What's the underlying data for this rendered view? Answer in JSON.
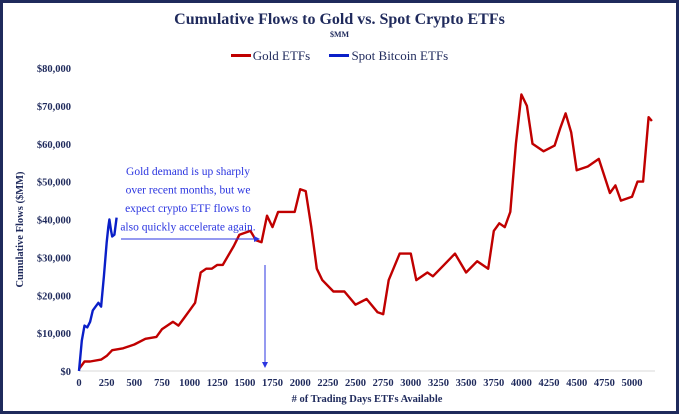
{
  "chart_data": {
    "type": "line",
    "title": "Cumulative Flows to Gold vs. Spot Crypto ETFs",
    "subtitle": "$MM",
    "xlabel": "# of Trading Days ETFs Available",
    "ylabel": "Cumulative Flows ($MM)",
    "xlim": [
      0,
      5250
    ],
    "ylim": [
      0,
      80000
    ],
    "x_ticks": [
      "0",
      "250",
      "500",
      "750",
      "1000",
      "1250",
      "1500",
      "1750",
      "2000",
      "2250",
      "2500",
      "2750",
      "3000",
      "3250",
      "3500",
      "3750",
      "4000",
      "4250",
      "4500",
      "4750",
      "5000"
    ],
    "y_ticks": [
      "$0",
      "$10,000",
      "$20,000",
      "$30,000",
      "$40,000",
      "$50,000",
      "$60,000",
      "$70,000",
      "$80,000"
    ],
    "grid": false,
    "legend_placement": "top",
    "annotation": [
      "Gold demand is up sharply",
      "over recent months, but we",
      "expect crypto ETF flows to",
      "also quickly accelerate again."
    ],
    "series": [
      {
        "name": "Gold ETFs",
        "color": "#c00000",
        "x": [
          0,
          50,
          100,
          200,
          250,
          300,
          400,
          500,
          600,
          700,
          750,
          850,
          900,
          950,
          1000,
          1050,
          1100,
          1150,
          1200,
          1250,
          1300,
          1400,
          1450,
          1550,
          1600,
          1650,
          1700,
          1750,
          1800,
          1900,
          1950,
          2000,
          2050,
          2100,
          2150,
          2200,
          2300,
          2400,
          2500,
          2600,
          2700,
          2750,
          2800,
          2900,
          3000,
          3050,
          3150,
          3200,
          3300,
          3400,
          3500,
          3600,
          3700,
          3750,
          3800,
          3850,
          3900,
          3950,
          4000,
          4050,
          4100,
          4200,
          4300,
          4350,
          4400,
          4450,
          4500,
          4600,
          4700,
          4800,
          4850,
          4900,
          5000,
          5050,
          5100,
          5150,
          5180
        ],
        "y": [
          500,
          2500,
          2500,
          3000,
          4000,
          5500,
          6000,
          7000,
          8500,
          9000,
          11000,
          13000,
          12000,
          14000,
          16000,
          18000,
          26000,
          27000,
          27000,
          28000,
          28000,
          33000,
          36000,
          37000,
          34500,
          34000,
          41000,
          38000,
          42000,
          42000,
          42000,
          48000,
          47500,
          38000,
          27000,
          24000,
          21000,
          21000,
          17500,
          19000,
          15500,
          15000,
          24000,
          31000,
          31000,
          24000,
          26000,
          25000,
          28000,
          31000,
          26000,
          29000,
          27000,
          37000,
          39000,
          38000,
          42000,
          60000,
          73000,
          70000,
          60000,
          58000,
          59500,
          64000,
          68000,
          63000,
          53000,
          54000,
          56000,
          47000,
          49000,
          45000,
          46000,
          50000,
          50000,
          67000,
          66000
        ]
      },
      {
        "name": "Spot Bitcoin ETFs",
        "color": "#0a1fc8",
        "x": [
          0,
          25,
          50,
          75,
          100,
          125,
          150,
          175,
          200,
          225,
          250,
          265,
          275,
          290,
          300,
          320,
          340
        ],
        "y": [
          0,
          8000,
          12000,
          11500,
          13000,
          16000,
          17000,
          18000,
          17000,
          25000,
          34000,
          38000,
          40000,
          37000,
          35500,
          36000,
          40500
        ]
      }
    ]
  }
}
